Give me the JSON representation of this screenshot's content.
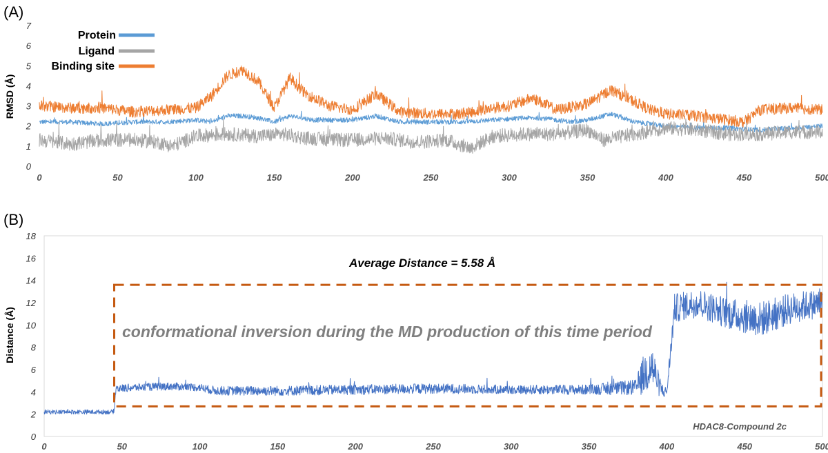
{
  "chart_data": [
    {
      "type": "line",
      "panel_label": "(A)",
      "ylabel": "RMSD (Å)",
      "xlabel": "",
      "xlim": [
        0,
        500
      ],
      "ylim": [
        0,
        7
      ],
      "xticks": [
        0,
        50,
        100,
        150,
        200,
        250,
        300,
        350,
        400,
        450,
        500
      ],
      "yticks": [
        0,
        1,
        2,
        3,
        4,
        5,
        6,
        7
      ],
      "grid": false,
      "legend_position": "top-left",
      "series": [
        {
          "name": "Protein",
          "color": "#5b9bd5",
          "x": [
            0,
            20,
            40,
            60,
            80,
            100,
            110,
            120,
            130,
            140,
            150,
            160,
            175,
            200,
            215,
            230,
            250,
            270,
            290,
            310,
            320,
            340,
            350,
            365,
            380,
            400,
            420,
            440,
            460,
            480,
            500
          ],
          "y": [
            2.2,
            2.2,
            2.1,
            2.2,
            2.2,
            2.3,
            2.2,
            2.5,
            2.5,
            2.4,
            2.2,
            2.5,
            2.3,
            2.3,
            2.5,
            2.2,
            2.2,
            2.2,
            2.3,
            2.4,
            2.4,
            2.2,
            2.3,
            2.6,
            2.2,
            2.0,
            1.9,
            1.9,
            1.8,
            1.9,
            2.0
          ],
          "noise": 0.12
        },
        {
          "name": "Ligand",
          "color": "#a5a5a5",
          "x": [
            0,
            20,
            40,
            60,
            75,
            85,
            100,
            120,
            140,
            155,
            170,
            190,
            200,
            220,
            240,
            260,
            275,
            290,
            310,
            330,
            350,
            360,
            380,
            400,
            420,
            440,
            460,
            480,
            500
          ],
          "y": [
            1.3,
            1.1,
            1.3,
            1.3,
            1.2,
            1.0,
            1.5,
            1.6,
            1.5,
            1.6,
            1.4,
            1.3,
            1.3,
            1.4,
            1.2,
            1.3,
            0.9,
            1.5,
            1.6,
            1.6,
            1.8,
            1.3,
            1.6,
            1.9,
            1.8,
            1.6,
            1.6,
            1.7,
            1.7
          ],
          "noise": 0.35
        },
        {
          "name": "Binding site",
          "color": "#ed7d31",
          "x": [
            0,
            20,
            40,
            60,
            80,
            100,
            110,
            120,
            130,
            140,
            150,
            160,
            170,
            185,
            200,
            215,
            230,
            250,
            270,
            290,
            300,
            315,
            330,
            350,
            365,
            380,
            390,
            400,
            420,
            440,
            450,
            460,
            480,
            500
          ],
          "y": [
            3.0,
            2.9,
            2.9,
            2.7,
            2.8,
            2.9,
            3.5,
            4.5,
            4.8,
            4.2,
            2.9,
            4.4,
            3.6,
            3.0,
            2.8,
            3.6,
            2.7,
            2.6,
            2.6,
            2.9,
            3.0,
            3.4,
            2.8,
            3.1,
            3.8,
            3.2,
            2.8,
            2.6,
            2.5,
            2.3,
            2.2,
            2.8,
            2.9,
            2.8
          ],
          "noise": 0.28
        }
      ]
    },
    {
      "type": "line",
      "panel_label": "(B)",
      "ylabel": "Distance (Å)",
      "xlabel": "",
      "xlim": [
        0,
        500
      ],
      "ylim": [
        0,
        18
      ],
      "xticks": [
        0,
        50,
        100,
        150,
        200,
        250,
        300,
        350,
        400,
        450,
        500
      ],
      "yticks": [
        0,
        2,
        4,
        6,
        8,
        10,
        12,
        14,
        16,
        18
      ],
      "grid": false,
      "annotation_average": "Average Distance = 5.58 Å",
      "annotation_inversion": "conformational inversion during the MD production of this time period",
      "annotation_system": "HDAC8-Compound 2c",
      "highlight_box": {
        "x_range": [
          45,
          500
        ],
        "y_range": [
          2.7,
          13.6
        ],
        "color": "#c55a11"
      },
      "series": [
        {
          "name": "",
          "color": "#4472c4",
          "x": [
            0,
            44,
            45,
            46,
            60,
            80,
            100,
            110,
            150,
            200,
            250,
            300,
            350,
            380,
            385,
            390,
            395,
            398,
            400,
            405,
            420,
            440,
            460,
            480,
            500
          ],
          "y": [
            2.2,
            2.2,
            2.3,
            4.3,
            4.4,
            4.5,
            4.4,
            4.1,
            4.1,
            4.2,
            4.3,
            4.2,
            4.2,
            4.4,
            5.5,
            6.5,
            4.6,
            4.0,
            4.0,
            11.5,
            12.0,
            11.0,
            10.5,
            11.5,
            12.0
          ],
          "noise": [
            0.2,
            0.2,
            0.2,
            0.35,
            0.35,
            0.35,
            0.35,
            0.4,
            0.45,
            0.45,
            0.45,
            0.4,
            0.45,
            0.7,
            1.8,
            2.2,
            1.0,
            0.5,
            0.5,
            1.3,
            1.3,
            1.4,
            1.6,
            1.4,
            1.3
          ]
        }
      ]
    }
  ]
}
